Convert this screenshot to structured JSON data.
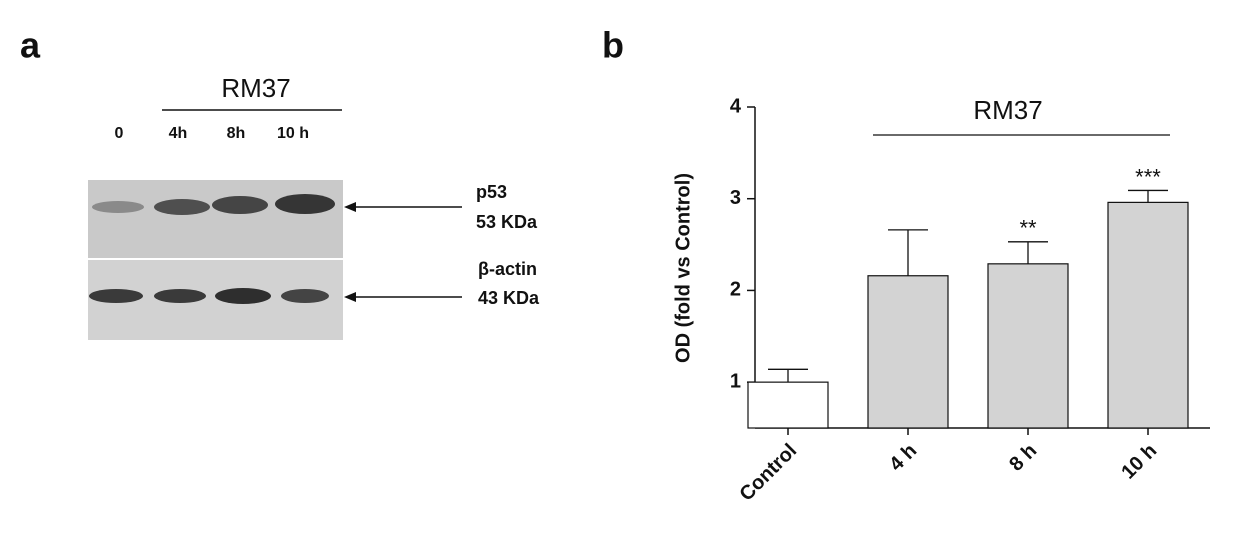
{
  "panel_a": {
    "label": "a",
    "treatment": "RM37",
    "lanes": [
      "0",
      "4h",
      "8h",
      "10 h"
    ],
    "bands": [
      {
        "name": "p53",
        "size": "53 KDa"
      },
      {
        "name": "β-actin",
        "size": "43 KDa"
      }
    ]
  },
  "chart_data": {
    "type": "bar",
    "panel_label": "b",
    "group_label": "RM37",
    "y_label": "OD (fold vs Control)",
    "categories": [
      "Control",
      "4 h",
      "8 h",
      "10 h"
    ],
    "values": [
      1.0,
      2.16,
      2.29,
      2.96
    ],
    "errors": [
      0.14,
      0.5,
      0.24,
      0.13
    ],
    "colors": [
      "#ffffff",
      "#d3d3d3",
      "#d3d3d3",
      "#d3d3d3"
    ],
    "significance": [
      null,
      null,
      "**",
      "***"
    ],
    "ylim": [
      0.5,
      4
    ],
    "yticks": [
      1,
      2,
      3,
      4
    ]
  }
}
